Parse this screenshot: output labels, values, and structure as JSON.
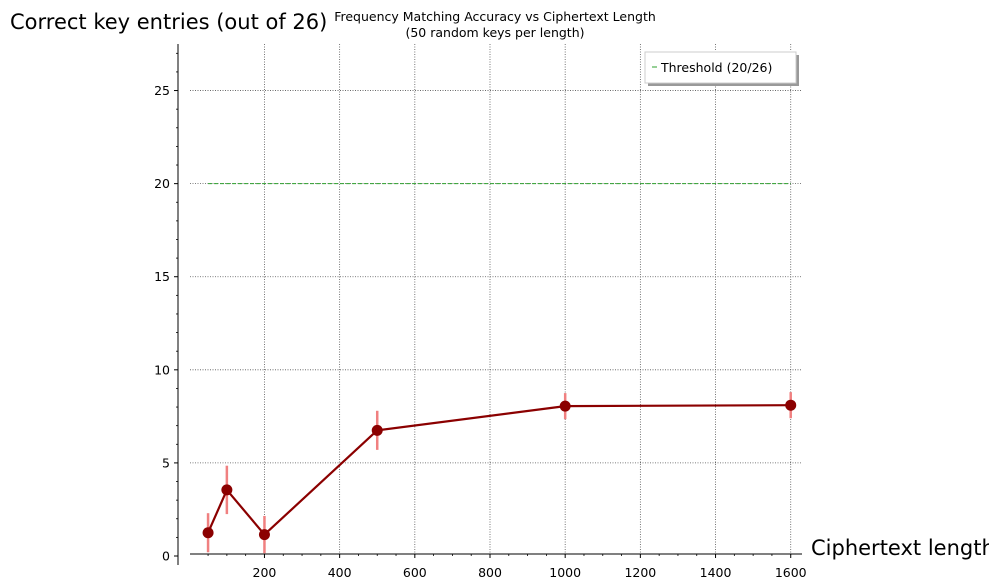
{
  "chart_data": {
    "type": "line",
    "title": "Frequency Matching Accuracy vs Ciphertext Length",
    "subtitle": "(50 random keys per length)",
    "xlabel": "Ciphertext length",
    "ylabel": "Correct key entries (out of 26)",
    "xlim": [
      -30,
      1630
    ],
    "ylim": [
      0,
      27.5
    ],
    "x_ticks": [
      200,
      400,
      600,
      800,
      1000,
      1200,
      1400,
      1600
    ],
    "y_ticks": [
      0,
      5,
      10,
      15,
      20,
      25
    ],
    "grid": true,
    "legend_position": "top-right",
    "series": [
      {
        "x": [
          50,
          100,
          200,
          500,
          1000,
          1600
        ],
        "y": [
          1.25,
          3.55,
          1.15,
          6.75,
          8.05,
          8.1
        ],
        "error": [
          1.05,
          1.3,
          1.0,
          1.05,
          0.7,
          0.7
        ],
        "color": "#8b0000",
        "errorbar_color": "#f08080"
      }
    ],
    "reference_lines": [
      {
        "name": "Threshold (20/26)",
        "y": 20,
        "x_range": [
          50,
          1600
        ],
        "color": "#2ca02c",
        "style": "dashed"
      }
    ]
  }
}
